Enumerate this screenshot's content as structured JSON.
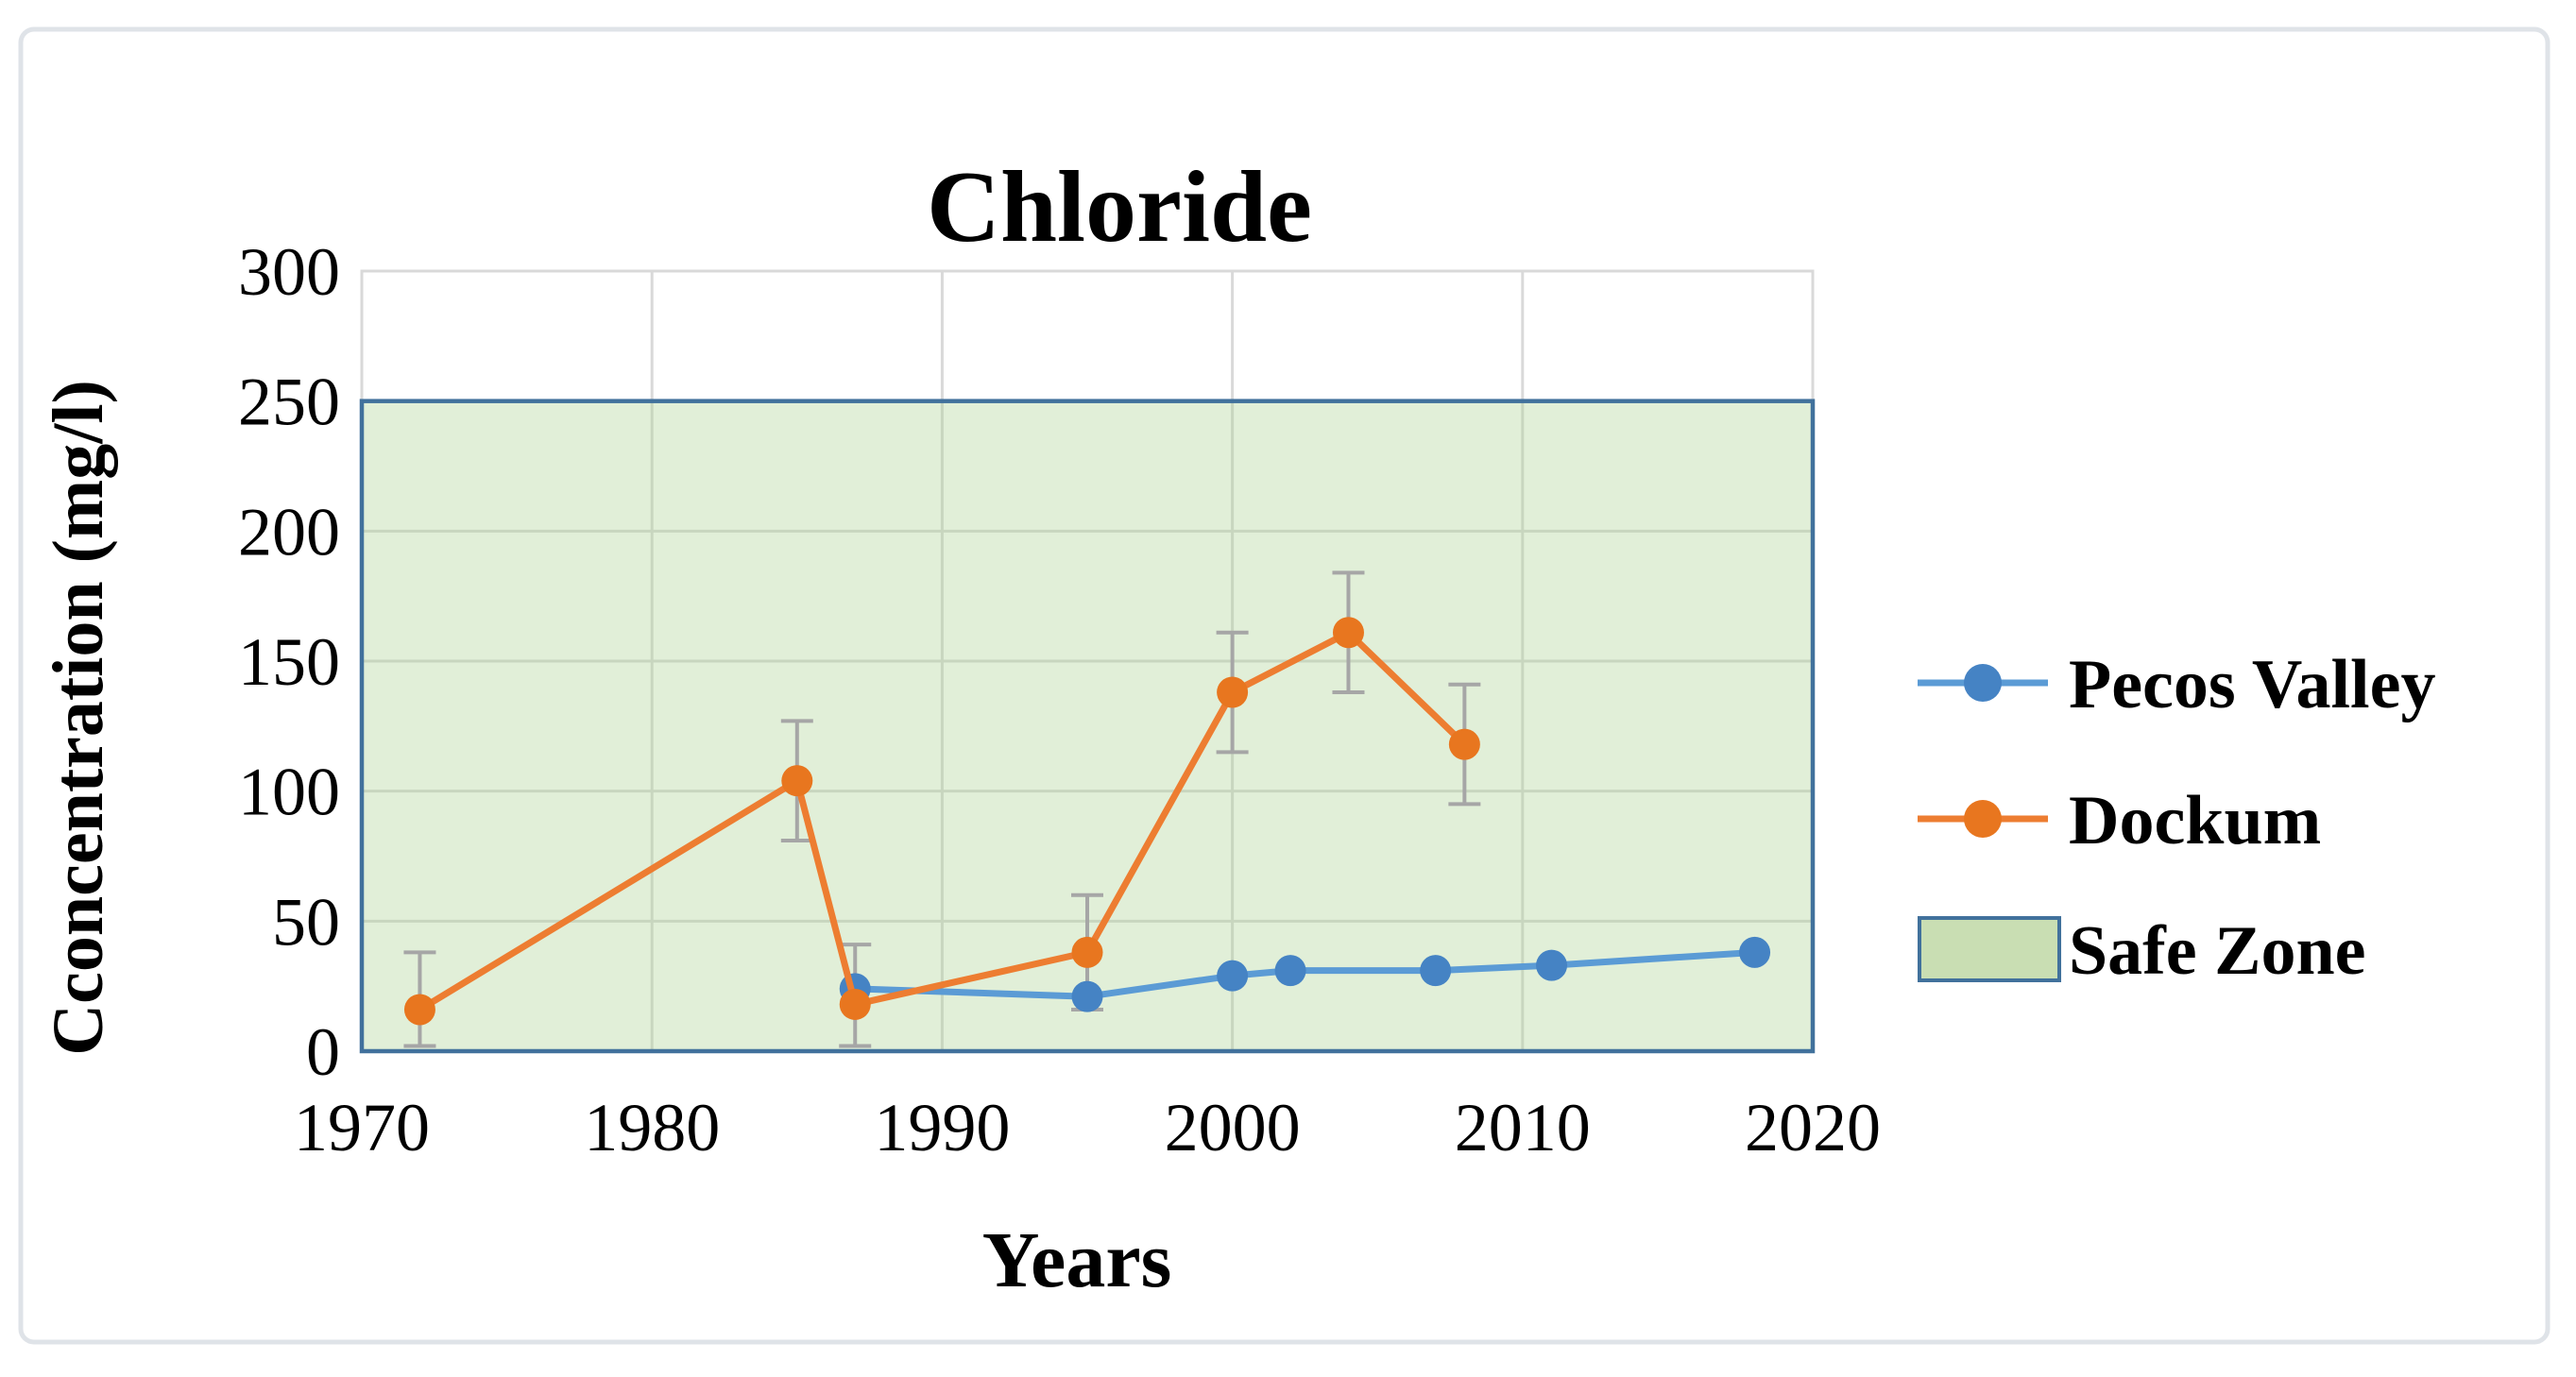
{
  "chart_data": {
    "type": "line",
    "title": "Chloride",
    "xlabel": "Years",
    "ylabel": "Cconcentration (mg/l)",
    "xlim": [
      1970,
      2020
    ],
    "ylim": [
      0,
      300
    ],
    "x_ticks": [
      1970,
      1980,
      1990,
      2000,
      2010,
      2020
    ],
    "y_ticks": [
      0,
      50,
      100,
      150,
      200,
      250,
      300
    ],
    "grid": true,
    "legend_position": "right",
    "safe_zone": {
      "label": "Safe Zone",
      "from": 0,
      "to": 250,
      "fill": "#a9d08e",
      "fill_opacity": 0.35,
      "legend_fill": "#c9deb3",
      "border": "#41719c"
    },
    "series": [
      {
        "name": "Pecos Valley",
        "line_color": "#5b9bd5",
        "marker_color": "#4583c4",
        "x": [
          1987,
          1995,
          2000,
          2002,
          2007,
          2011,
          2018
        ],
        "y": [
          24,
          21,
          29,
          31,
          31,
          33,
          38
        ]
      },
      {
        "name": "Dockum",
        "line_color": "#ed7d31",
        "marker_color": "#e8761f",
        "x": [
          1972,
          1985,
          1987,
          1995,
          2000,
          2004,
          2008
        ],
        "y": [
          16,
          104,
          18,
          38,
          138,
          161,
          118
        ],
        "error": [
          22,
          23,
          23,
          22,
          23,
          23,
          23
        ],
        "error_color": "#a6a6a6"
      }
    ]
  },
  "frame": {
    "background": "#ffffff",
    "border_color": "#dfe3e8",
    "gridline_color": "#d9d9d9"
  }
}
